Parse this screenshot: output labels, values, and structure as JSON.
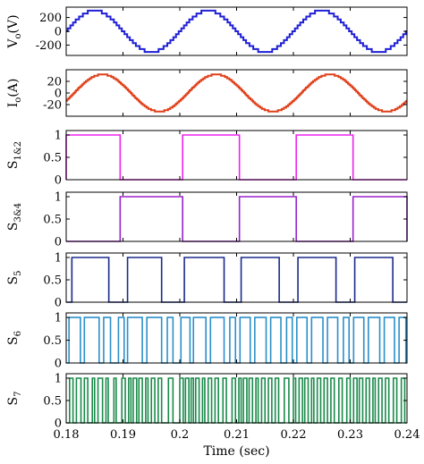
{
  "chart_data": {
    "type": "line",
    "x_axis": {
      "label": "Time (sec)",
      "range": [
        0.18,
        0.24
      ],
      "ticks": [
        "0.18",
        "0.19",
        "0.2",
        "0.21",
        "0.22",
        "0.23",
        "0.24"
      ]
    },
    "panels": [
      {
        "id": "vo",
        "ylabel_main": "V",
        "ylabel_sub": "o",
        "ylabel_tail": "(V)",
        "ylim": [
          -350,
          350
        ],
        "yticks": [
          "200",
          "0",
          "-200"
        ],
        "ytick_values": [
          200,
          0,
          -200
        ],
        "color": "#1f1fd6",
        "kind": "staircase_sine",
        "amplitude": 300,
        "frequency_hz": 50,
        "phase_deg": 0,
        "levels": 7
      },
      {
        "id": "io",
        "ylabel_main": "I",
        "ylabel_sub": "o",
        "ylabel_tail": "(A)",
        "ylim": [
          -40,
          40
        ],
        "yticks": [
          "20",
          "0",
          "-20"
        ],
        "ytick_values": [
          20,
          0,
          -20
        ],
        "color": "#e0401a",
        "kind": "staircase_sine",
        "amplitude": 32,
        "frequency_hz": 50,
        "phase_deg": -25,
        "levels": 14
      },
      {
        "id": "s12",
        "ylabel_main": "S",
        "ylabel_sub": "1&2",
        "ylabel_tail": "",
        "ylim": [
          0,
          1.1
        ],
        "yticks": [
          "1",
          "0.5",
          "0"
        ],
        "ytick_values": [
          1,
          0.5,
          0
        ],
        "color": "#ee22ee",
        "kind": "switching",
        "high_intervals": [
          [
            0.18,
            0.1895
          ],
          [
            0.2005,
            0.2105
          ],
          [
            0.2205,
            0.2305
          ]
        ]
      },
      {
        "id": "s34",
        "ylabel_main": "S",
        "ylabel_sub": "3&4",
        "ylabel_tail": "",
        "ylim": [
          0,
          1.1
        ],
        "yticks": [
          "1",
          "0.5",
          "0"
        ],
        "ytick_values": [
          1,
          0.5,
          0
        ],
        "color": "#9a22cc",
        "kind": "switching",
        "high_intervals": [
          [
            0.1895,
            0.2005
          ],
          [
            0.2105,
            0.2205
          ],
          [
            0.2305,
            0.24
          ]
        ]
      },
      {
        "id": "s5",
        "ylabel_main": "S",
        "ylabel_sub": "5",
        "ylabel_tail": "",
        "ylim": [
          0,
          1.1
        ],
        "yticks": [
          "1",
          "0.5",
          "0"
        ],
        "ytick_values": [
          1,
          0.5,
          0
        ],
        "color": "#1a2a8a",
        "kind": "switching",
        "high_intervals": [
          [
            0.181,
            0.1875
          ],
          [
            0.1908,
            0.1968
          ],
          [
            0.2008,
            0.2078
          ],
          [
            0.2108,
            0.2175
          ],
          [
            0.2208,
            0.2275
          ],
          [
            0.2308,
            0.2375
          ]
        ]
      },
      {
        "id": "s6",
        "ylabel_main": "S",
        "ylabel_sub": "6",
        "ylabel_tail": "",
        "ylim": [
          0,
          1.1
        ],
        "yticks": [
          "1",
          "0.5",
          "0"
        ],
        "ytick_values": [
          1,
          0.5,
          0
        ],
        "color": "#2a8fc8",
        "kind": "switching",
        "high_intervals": [
          [
            0.1805,
            0.1825
          ],
          [
            0.1832,
            0.1858
          ],
          [
            0.1866,
            0.1878
          ],
          [
            0.1892,
            0.1902
          ],
          [
            0.1908,
            0.1934
          ],
          [
            0.1942,
            0.1968
          ],
          [
            0.1978,
            0.1988
          ],
          [
            0.2002,
            0.2018
          ],
          [
            0.2024,
            0.2046
          ],
          [
            0.2054,
            0.2078
          ],
          [
            0.2088,
            0.2098
          ],
          [
            0.2106,
            0.2124
          ],
          [
            0.2132,
            0.2152
          ],
          [
            0.216,
            0.2178
          ],
          [
            0.2188,
            0.2198
          ],
          [
            0.2206,
            0.2224
          ],
          [
            0.2232,
            0.2252
          ],
          [
            0.226,
            0.2278
          ],
          [
            0.2288,
            0.2298
          ],
          [
            0.2306,
            0.2324
          ],
          [
            0.2332,
            0.2352
          ],
          [
            0.236,
            0.2378
          ],
          [
            0.2386,
            0.2398
          ]
        ]
      },
      {
        "id": "s7",
        "ylabel_main": "S",
        "ylabel_sub": "7",
        "ylabel_tail": "",
        "ylim": [
          0,
          1.1
        ],
        "yticks": [
          "1",
          "0.5",
          "0"
        ],
        "ytick_values": [
          1,
          0.5,
          0
        ],
        "color": "#1a8a4a",
        "kind": "switching",
        "high_intervals": [
          [
            0.1806,
            0.1812
          ],
          [
            0.1818,
            0.1826
          ],
          [
            0.1832,
            0.1838
          ],
          [
            0.1846,
            0.185
          ],
          [
            0.1856,
            0.1864
          ],
          [
            0.187,
            0.1874
          ],
          [
            0.1884,
            0.1888
          ],
          [
            0.1898,
            0.1904
          ],
          [
            0.191,
            0.1914
          ],
          [
            0.1918,
            0.1924
          ],
          [
            0.1928,
            0.1934
          ],
          [
            0.194,
            0.1944
          ],
          [
            0.195,
            0.1956
          ],
          [
            0.1962,
            0.1968
          ],
          [
            0.198,
            0.1988
          ],
          [
            0.2,
            0.2006
          ],
          [
            0.201,
            0.2016
          ],
          [
            0.202,
            0.2024
          ],
          [
            0.2028,
            0.2034
          ],
          [
            0.204,
            0.2044
          ],
          [
            0.205,
            0.2056
          ],
          [
            0.2062,
            0.2068
          ],
          [
            0.2076,
            0.2082
          ],
          [
            0.2092,
            0.2098
          ],
          [
            0.2104,
            0.2108
          ],
          [
            0.2112,
            0.2118
          ],
          [
            0.2122,
            0.2128
          ],
          [
            0.2134,
            0.2138
          ],
          [
            0.2144,
            0.215
          ],
          [
            0.2156,
            0.2162
          ],
          [
            0.2168,
            0.2174
          ],
          [
            0.2184,
            0.2192
          ],
          [
            0.22,
            0.2204
          ],
          [
            0.221,
            0.2216
          ],
          [
            0.222,
            0.2226
          ],
          [
            0.2232,
            0.2236
          ],
          [
            0.2242,
            0.2248
          ],
          [
            0.2254,
            0.226
          ],
          [
            0.2266,
            0.2272
          ],
          [
            0.228,
            0.2286
          ],
          [
            0.2294,
            0.23
          ],
          [
            0.2306,
            0.2312
          ],
          [
            0.2316,
            0.2322
          ],
          [
            0.2328,
            0.2334
          ],
          [
            0.234,
            0.2344
          ],
          [
            0.235,
            0.2356
          ],
          [
            0.2362,
            0.2368
          ],
          [
            0.2376,
            0.2382
          ],
          [
            0.239,
            0.2396
          ]
        ]
      }
    ]
  }
}
